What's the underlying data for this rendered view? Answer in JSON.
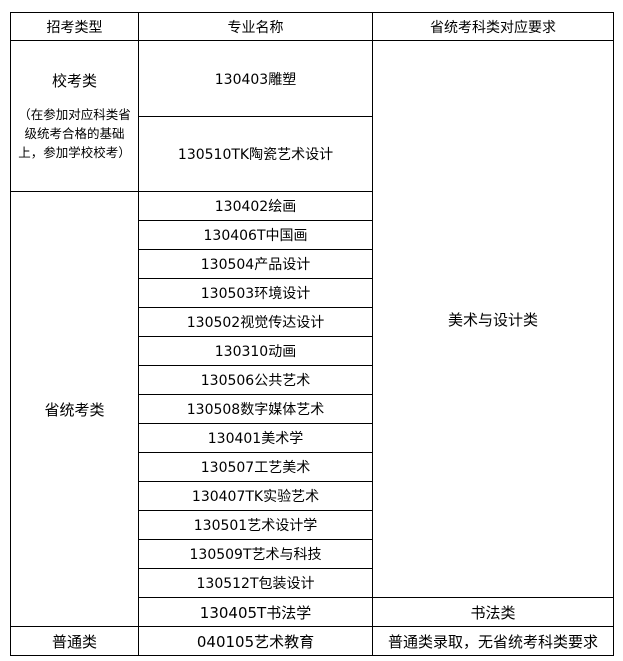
{
  "headers": [
    "招考类型",
    "专业名称",
    "省统考科类对应要求"
  ],
  "school_exam": {
    "type": "校考类",
    "note": "（在参加对应科类省级统考合格的基础上，参加学校校考）",
    "majors": [
      "130403雕塑",
      "130510TK陶瓷艺术设计"
    ]
  },
  "provincial_exam": {
    "type": "省统考类",
    "majors": [
      "130402绘画",
      "130406T中国画",
      "130504产品设计",
      "130503环境设计",
      "130502视觉传达设计",
      "130310动画",
      "130506公共艺术",
      "130508数字媒体艺术",
      "130401美术学",
      "130507工艺美术",
      "130407TK实验艺术",
      "130501艺术设计学",
      "130509T艺术与科技",
      "130512T包装设计"
    ],
    "calligraphy_major": "130405T书法学"
  },
  "requirements": {
    "art_design": "美术与设计类",
    "calligraphy": "书法类",
    "general": "普通类录取，无省统考科类要求"
  },
  "general": {
    "type": "普通类",
    "major": "040105艺术教育"
  }
}
